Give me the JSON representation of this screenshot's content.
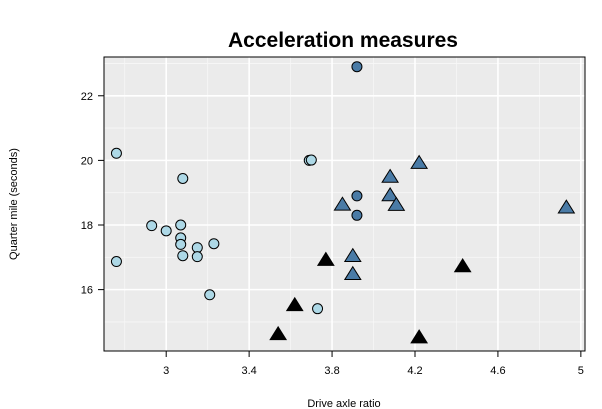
{
  "chart_data": {
    "type": "scatter",
    "title": "Acceleration measures",
    "xlabel": "Drive axle ratio",
    "ylabel": "Quarter mile (seconds)",
    "xlim": [
      2.7,
      5.02
    ],
    "ylim": [
      14.1,
      23.2
    ],
    "xticks": [
      3,
      3.4,
      3.8,
      4.2,
      4.6,
      5
    ],
    "xtick_labels": [
      "3",
      "3.4",
      "3.8",
      "4.2",
      "4.6",
      "5"
    ],
    "yticks": [
      16,
      18,
      20,
      22
    ],
    "ytick_labels": [
      "16",
      "18",
      "20",
      "22"
    ],
    "grid": true,
    "legend": "none",
    "series": [
      {
        "marker": "circle",
        "color": "#add8e6",
        "points": [
          [
            2.76,
            20.22
          ],
          [
            2.76,
            16.87
          ],
          [
            2.93,
            17.98
          ],
          [
            3.0,
            17.82
          ],
          [
            3.07,
            18.0
          ],
          [
            3.07,
            17.6
          ],
          [
            3.07,
            17.4
          ],
          [
            3.08,
            19.44
          ],
          [
            3.08,
            17.05
          ],
          [
            3.15,
            17.3
          ],
          [
            3.15,
            17.02
          ],
          [
            3.21,
            15.84
          ],
          [
            3.23,
            17.42
          ],
          [
            3.69,
            20.0
          ],
          [
            3.7,
            20.01
          ],
          [
            3.73,
            15.41
          ]
        ]
      },
      {
        "marker": "circle",
        "color": "#4a7ba6",
        "points": [
          [
            3.92,
            22.9
          ],
          [
            3.92,
            18.9
          ],
          [
            3.92,
            18.3
          ]
        ]
      },
      {
        "marker": "triangle",
        "color": "#4a7ba6",
        "points": [
          [
            3.85,
            18.61
          ],
          [
            3.9,
            17.02
          ],
          [
            3.9,
            16.46
          ],
          [
            4.08,
            19.47
          ],
          [
            4.08,
            18.9
          ],
          [
            4.11,
            18.6
          ],
          [
            4.22,
            19.9
          ],
          [
            4.93,
            18.52
          ]
        ]
      },
      {
        "marker": "triangle",
        "color": "#000000",
        "points": [
          [
            3.54,
            14.6
          ],
          [
            3.62,
            15.5
          ],
          [
            3.77,
            16.9
          ],
          [
            4.22,
            14.5
          ],
          [
            4.43,
            16.7
          ]
        ]
      }
    ]
  }
}
